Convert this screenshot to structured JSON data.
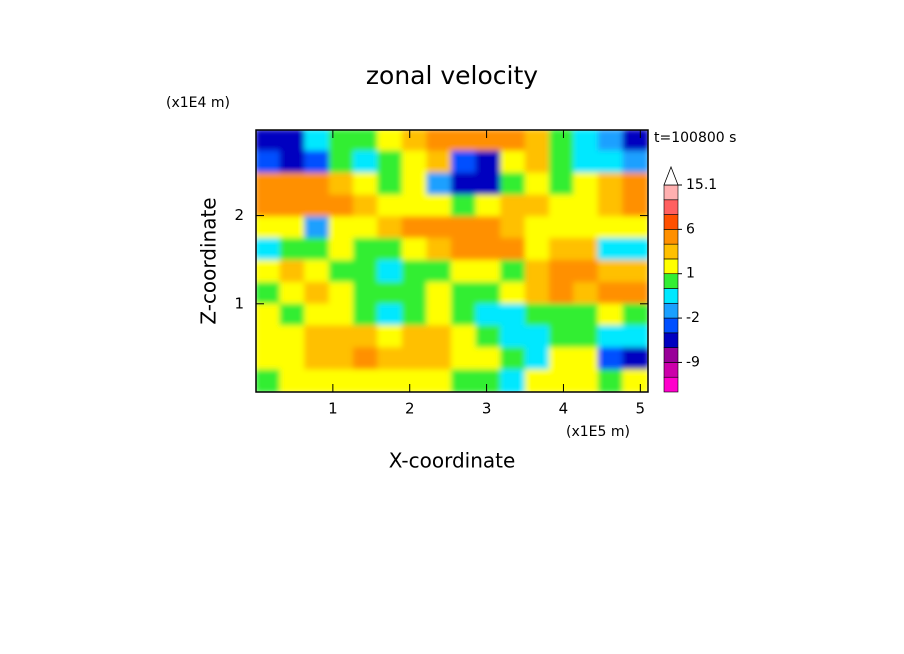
{
  "chart_data": {
    "type": "contour",
    "title": "zonal velocity",
    "x_label": "X-coordinate",
    "y_label": "Z-coordinate",
    "x_unit": "(x1E5 m)",
    "y_unit": "(x1E4 m)",
    "annotation": "t=100800 s",
    "xlim": [
      0,
      5.1
    ],
    "ylim": [
      0,
      2.97
    ],
    "xticks": [
      1,
      2,
      3,
      4,
      5
    ],
    "yticks": [
      1,
      2
    ],
    "x": [
      0.16,
      0.48,
      0.8,
      1.12,
      1.43,
      1.75,
      2.07,
      2.39,
      2.71,
      3.03,
      3.35,
      3.67,
      3.98,
      4.3,
      4.62,
      4.94
    ],
    "y": [
      2.85,
      2.6,
      2.35,
      2.1,
      1.86,
      1.61,
      1.36,
      1.11,
      0.87,
      0.62,
      0.37,
      0.12
    ],
    "z": [
      [
        -4,
        -4,
        -1,
        0,
        0,
        1,
        2,
        3,
        4,
        4,
        3,
        2,
        0,
        -1,
        -2,
        -4
      ],
      [
        -3,
        -4,
        -3,
        0,
        -1,
        0,
        1,
        2,
        -3,
        -4,
        1,
        2,
        0,
        -1,
        -1,
        -2
      ],
      [
        4,
        5,
        3,
        2,
        1,
        0,
        1,
        -2,
        -4,
        -4,
        0,
        1,
        0,
        1,
        2,
        3
      ],
      [
        3,
        4,
        4,
        3,
        2,
        1,
        1,
        1,
        0,
        1,
        2,
        2,
        1,
        1,
        2,
        3
      ],
      [
        1,
        1,
        -2,
        1,
        1,
        2,
        3,
        3,
        4,
        3,
        2,
        1,
        1,
        1,
        1,
        1
      ],
      [
        -1,
        0,
        0,
        1,
        0,
        0,
        1,
        2,
        3,
        3,
        3,
        1,
        2,
        2,
        -1,
        -1
      ],
      [
        1,
        2,
        1,
        0,
        0,
        -1,
        0,
        0,
        1,
        1,
        0,
        2,
        3,
        3,
        2,
        2
      ],
      [
        0,
        1,
        2,
        1,
        0,
        0,
        0,
        1,
        0,
        0,
        1,
        2,
        3,
        2,
        3,
        3
      ],
      [
        1,
        0,
        1,
        1,
        0,
        -1,
        0,
        1,
        0,
        -1,
        -1,
        0,
        0,
        0,
        1,
        0
      ],
      [
        1,
        1,
        2,
        2,
        2,
        1,
        2,
        2,
        1,
        0,
        -1,
        -1,
        0,
        0,
        -1,
        -1
      ],
      [
        1,
        1,
        2,
        2,
        3,
        2,
        2,
        2,
        1,
        1,
        0,
        -1,
        1,
        1,
        -3,
        -4
      ],
      [
        0,
        1,
        1,
        1,
        1,
        1,
        1,
        1,
        0,
        0,
        -1,
        1,
        1,
        1,
        0,
        1
      ]
    ],
    "colorbar": {
      "levels": [
        -15,
        -12,
        -9,
        -6,
        -3,
        -2,
        -1,
        0,
        1,
        2,
        3,
        6,
        9,
        12,
        15.1
      ],
      "colors": [
        "#ff00cc",
        "#cc00aa",
        "#990099",
        "#0000c0",
        "#0050ff",
        "#1aa0ff",
        "#00e8ff",
        "#33ee33",
        "#ffff00",
        "#ffc000",
        "#ff9000",
        "#ff5000",
        "#ff6060",
        "#ffb0b0"
      ],
      "ticks": [
        15.1,
        6,
        1,
        -2,
        -9
      ]
    }
  }
}
